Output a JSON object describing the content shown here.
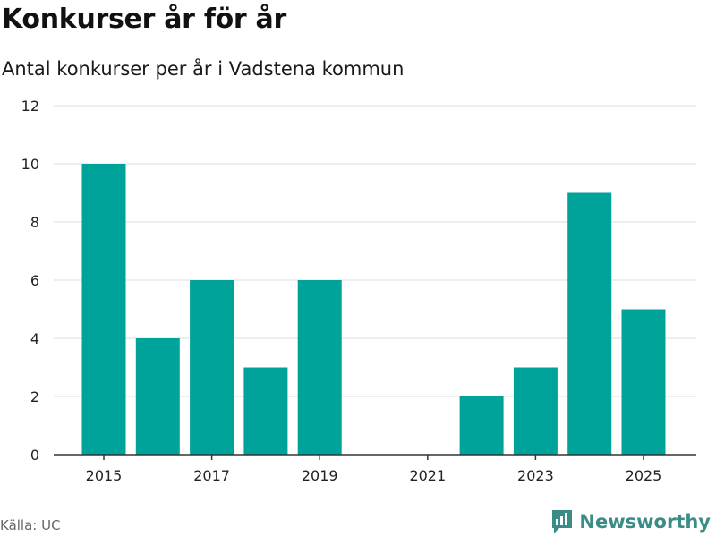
{
  "header": {
    "title": "Konkurser år för år",
    "subtitle": "Antal konkurser per år i Vadstena kommun"
  },
  "footer": {
    "source": "Källa: UC",
    "brand": "Newsworthy"
  },
  "colors": {
    "bar": "#00a39a",
    "grid": "#dddddd",
    "axis": "#333333",
    "brand": "#3b8c86"
  },
  "icons": {
    "brand_logo": "newsworthy-logo-icon"
  },
  "chart_data": {
    "type": "bar",
    "categories": [
      "2015",
      "2016",
      "2017",
      "2018",
      "2019",
      "2020",
      "2021",
      "2022",
      "2023",
      "2024",
      "2025"
    ],
    "values": [
      10,
      4,
      6,
      3,
      6,
      0,
      0,
      2,
      3,
      9,
      5
    ],
    "x_tick_labels": [
      "2015",
      "2017",
      "2019",
      "2021",
      "2023",
      "2025"
    ],
    "y_ticks": [
      0,
      2,
      4,
      6,
      8,
      10,
      12
    ],
    "ylim": [
      0,
      12
    ],
    "xlabel": "",
    "ylabel": "",
    "grid": true,
    "legend": "none"
  }
}
